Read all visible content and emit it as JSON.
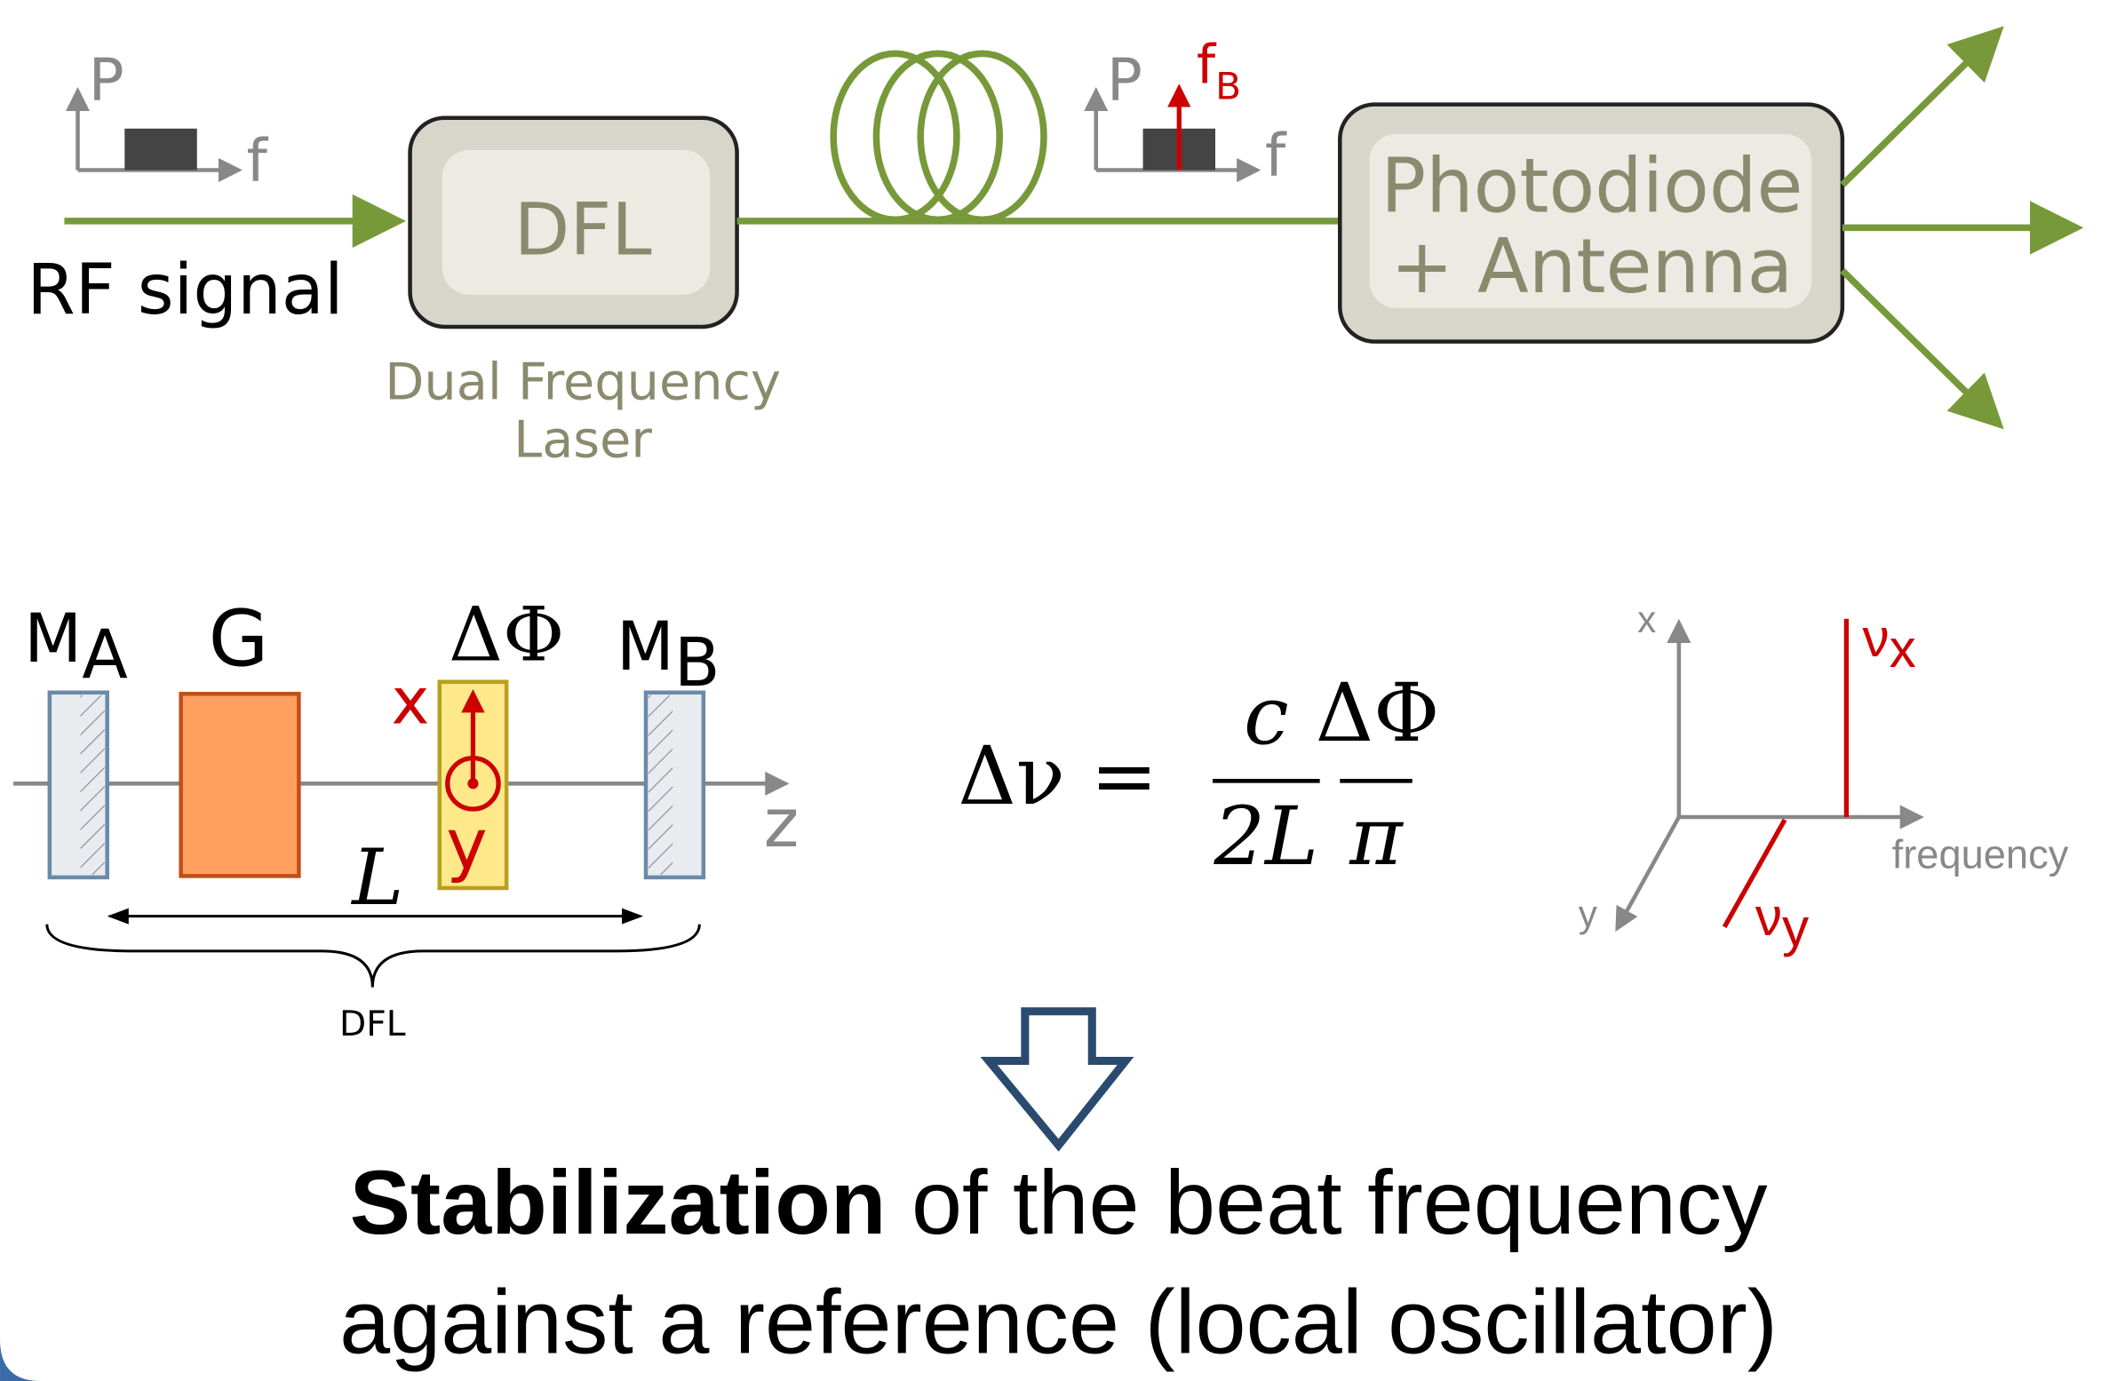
{
  "top": {
    "spectrum_in": {
      "axis_p": "P",
      "axis_f": "f"
    },
    "rf_signal": "RF signal",
    "dfl_box": "DFL",
    "dfl_caption": [
      "Dual Frequency",
      "Laser"
    ],
    "spectrum_out": {
      "axis_p": "P",
      "axis_f": "f",
      "beat": {
        "main": "f",
        "sub": "B"
      }
    },
    "photodiode_box": [
      "Photodiode",
      "+ Antenna"
    ]
  },
  "cavity": {
    "mirror_a": {
      "main": "M",
      "sub": "A"
    },
    "gain": "G",
    "phase": "ΔΦ",
    "mirror_b": {
      "main": "M",
      "sub": "B"
    },
    "pol_x": "x",
    "pol_y": "y",
    "axis_z": "z",
    "length": "L",
    "brace": "DFL"
  },
  "formula": {
    "lhs": "Δν =",
    "num1": "c",
    "den1": "2L",
    "num2": "ΔΦ",
    "den2": "π"
  },
  "modes": {
    "axis_x": "x",
    "axis_y": "y",
    "axis_freq": "frequency",
    "nu_x": {
      "main": "ν",
      "sub": "x"
    },
    "nu_y": {
      "main": "ν",
      "sub": "y"
    }
  },
  "conclusion": {
    "bold": "Stabilization",
    "rest": " of the beat frequency",
    "line2": "against a reference (local oscillator)"
  }
}
